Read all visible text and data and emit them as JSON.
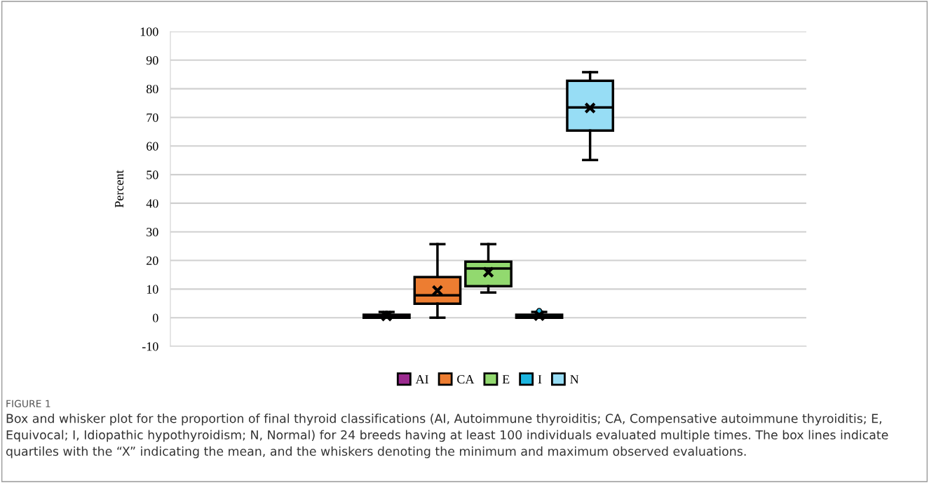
{
  "chart_data": {
    "type": "box",
    "ylabel": "Percent",
    "categories": [
      null
    ],
    "series": [
      {
        "name": "AI",
        "color": "#9b2a8f",
        "boxes": [
          {
            "low": 0,
            "q1": 0,
            "median": 0.3,
            "q3": 1,
            "high": 2,
            "mean": 0.6
          }
        ]
      },
      {
        "name": "CA",
        "color": "#ed7d31",
        "boxes": [
          {
            "low": 0,
            "q1": 4.9,
            "median": 7.8,
            "q3": 14.2,
            "high": 25.7,
            "mean": 9.5
          }
        ]
      },
      {
        "name": "E",
        "color": "#92d96f",
        "boxes": [
          {
            "low": 8.8,
            "q1": 11,
            "median": 17.2,
            "q3": 19.6,
            "high": 25.7,
            "mean": 15.9
          }
        ]
      },
      {
        "name": "I",
        "color": "#1cb5e0",
        "boxes": [
          {
            "low": 0,
            "q1": 0,
            "median": 0.3,
            "q3": 1,
            "high": 2,
            "mean": 0.7,
            "outliers": [
              2.4
            ]
          }
        ]
      },
      {
        "name": "N",
        "color": "#97ddf5",
        "boxes": [
          {
            "low": 55.1,
            "q1": 65.4,
            "median": 73.5,
            "q3": 82.8,
            "high": 85.8,
            "mean": 73.3
          }
        ]
      }
    ],
    "ylim": [
      -10,
      100
    ],
    "yticks": [
      -10,
      0,
      10,
      20,
      30,
      40,
      50,
      60,
      70,
      80,
      90,
      100
    ],
    "grid": "y",
    "legend": "bottom",
    "annotations": [
      "FIGURE 1",
      "Box and whisker plot for the proportion of final thyroid classifications (AI, Autoimmune thyroiditis; CA, Compensative autoimmune thyroiditis; E, Equivocal; I, Idiopathic hypothyroidism; N, Normal) for 24 breeds having at least 100 individuals evaluated multiple times. The box lines indicate quartiles with the “X” indicating the mean, and the whiskers denoting the minimum and maximum observed evaluations."
    ]
  }
}
